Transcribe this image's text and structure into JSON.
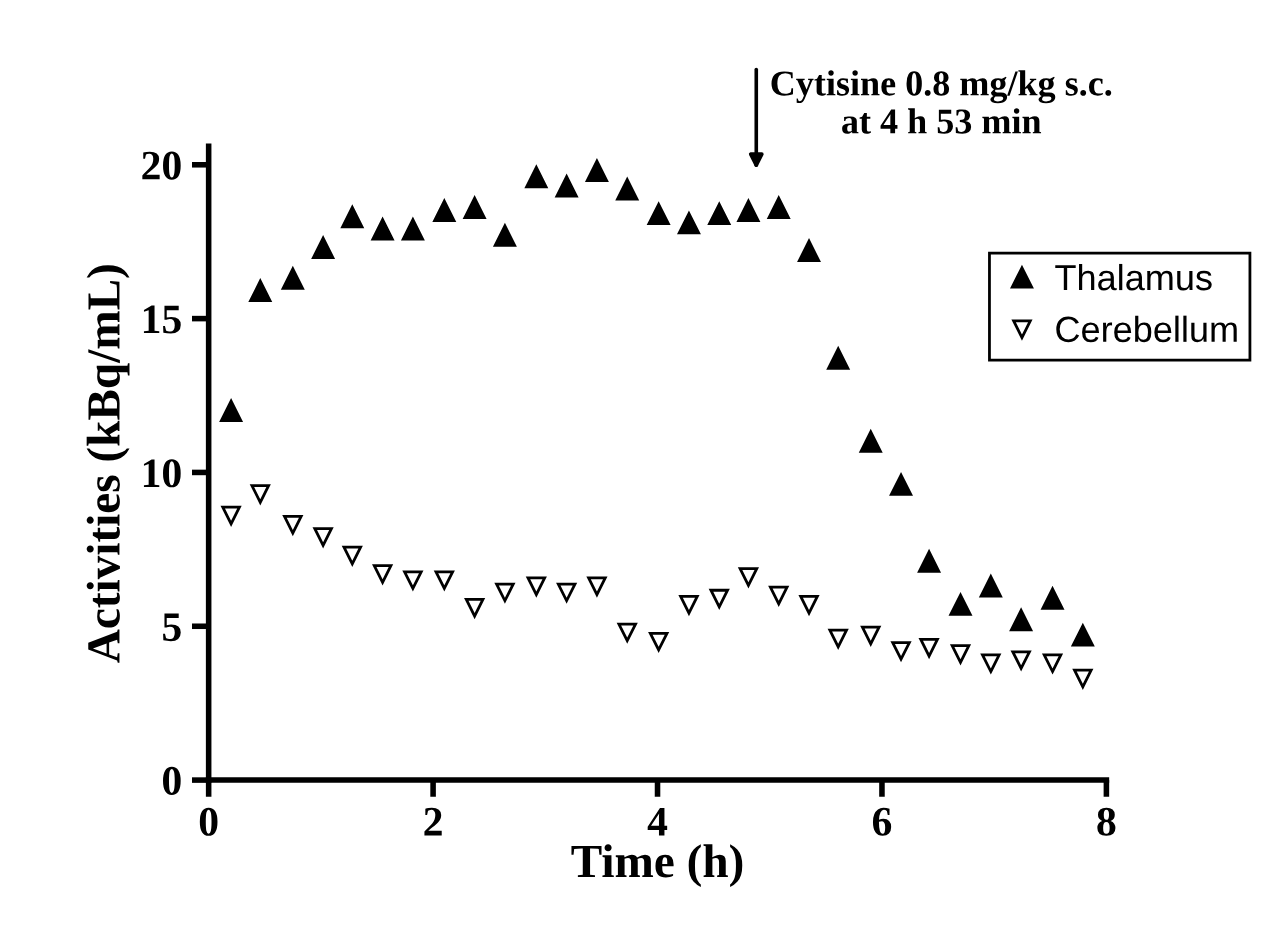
{
  "chart_data": {
    "type": "scatter",
    "xlabel": "Time (h)",
    "ylabel": "Activities (kBq/mL)",
    "xlim": [
      0,
      8
    ],
    "xticks": [
      0,
      2,
      4,
      6,
      8
    ],
    "ylim": [
      0,
      20.6
    ],
    "yticks": [
      0,
      5,
      10,
      15,
      20
    ],
    "x": [
      0.2,
      0.46,
      0.75,
      1.02,
      1.28,
      1.55,
      1.82,
      2.1,
      2.37,
      2.64,
      2.92,
      3.19,
      3.46,
      3.73,
      4.01,
      4.28,
      4.55,
      4.81,
      5.08,
      5.35,
      5.61,
      5.9,
      6.17,
      6.42,
      6.7,
      6.97,
      7.24,
      7.52,
      7.79
    ],
    "series": [
      {
        "name": "Thalamus",
        "color": "#000000",
        "marker": "triangle",
        "values": [
          12.0,
          15.9,
          16.3,
          17.3,
          18.3,
          17.9,
          17.9,
          18.5,
          18.6,
          17.7,
          19.6,
          19.3,
          19.8,
          19.2,
          18.4,
          18.1,
          18.4,
          18.5,
          18.6,
          17.2,
          13.7,
          11.0,
          9.6,
          7.1,
          5.7,
          6.3,
          5.2,
          5.9,
          4.7
        ]
      },
      {
        "name": "Cerebellum",
        "color": "#000000",
        "marker": "triangle_down",
        "values": [
          8.6,
          9.3,
          8.3,
          7.9,
          7.3,
          6.7,
          6.5,
          6.5,
          5.6,
          6.1,
          6.3,
          6.1,
          6.3,
          4.8,
          4.5,
          5.7,
          5.9,
          6.6,
          6.0,
          5.7,
          4.6,
          4.7,
          4.2,
          4.3,
          4.1,
          3.8,
          3.9,
          3.8,
          3.3
        ]
      }
    ],
    "annotations": [
      "Cytisine 0.8 mg/kg s.c.\nat 4 h 53 min"
    ],
    "legend": "top right",
    "grid": false
  }
}
